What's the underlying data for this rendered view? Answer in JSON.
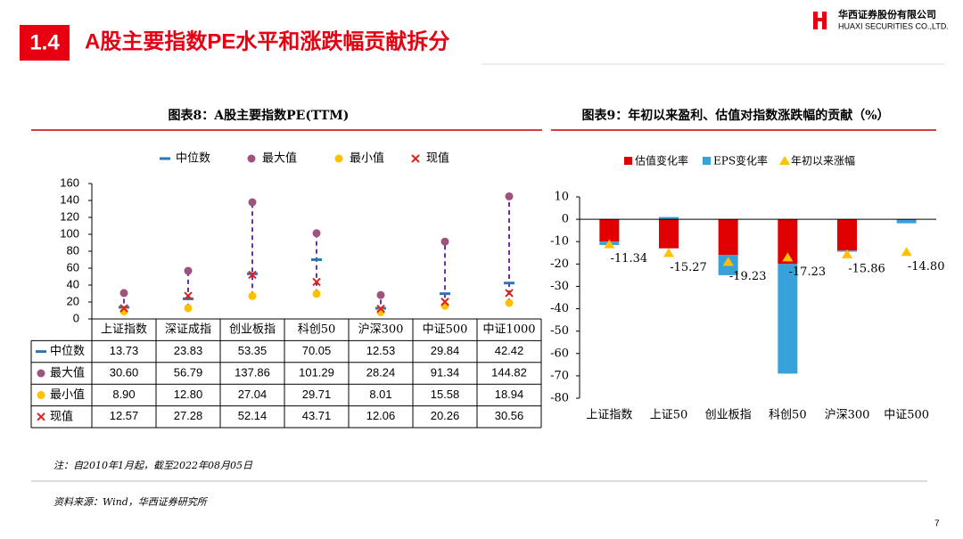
{
  "header": {
    "section": "1.4",
    "title": "A股主要指数PE水平和涨跌幅贡献拆分",
    "company": "华西证券股份有限公司",
    "company_en": "HUAXI SECURITIES CO.,LTD."
  },
  "chart_data": [
    {
      "type": "dot",
      "title": "图表8：A股主要指数PE(TTM)",
      "categories": [
        "上证指数",
        "深证成指",
        "创业板指",
        "科创50",
        "沪深300",
        "中证500",
        "中证1000"
      ],
      "series": [
        {
          "name": "中位数",
          "color": "#2e75b6",
          "marker": "dash",
          "values": [
            13.73,
            23.83,
            53.35,
            70.05,
            12.53,
            29.84,
            42.42
          ],
          "value_labels": [
            "13.73",
            "23.83",
            "53.35",
            "70.05",
            "12.53",
            "29.84",
            "42.42"
          ]
        },
        {
          "name": "最大值",
          "color": "#a0527f",
          "marker": "circle",
          "values": [
            30.6,
            56.79,
            137.86,
            101.29,
            28.24,
            91.34,
            144.82
          ],
          "value_labels": [
            "30.60",
            "56.79",
            "137.86",
            "101.29",
            "28.24",
            "91.34",
            "144.82"
          ]
        },
        {
          "name": "最小值",
          "color": "#ffc000",
          "marker": "circle",
          "values": [
            8.9,
            12.8,
            27.04,
            29.71,
            8.01,
            15.58,
            18.94
          ],
          "value_labels": [
            "8.90",
            "12.80",
            "27.04",
            "29.71",
            "8.01",
            "15.58",
            "18.94"
          ]
        },
        {
          "name": "现值",
          "color": "#e0201b",
          "marker": "x",
          "values": [
            12.57,
            27.28,
            52.14,
            43.71,
            12.06,
            20.26,
            30.56
          ],
          "value_labels": [
            "12.57",
            "27.28",
            "52.14",
            "43.71",
            "12.06",
            "20.26",
            "30.56"
          ]
        }
      ],
      "range_color": "#7030a0",
      "ylim": [
        0,
        160
      ],
      "yticks": [
        0,
        20,
        40,
        60,
        80,
        100,
        120,
        140,
        160
      ]
    },
    {
      "type": "bar",
      "title": "图表9：年初以来盈利、估值对指数涨跌幅的贡献（%）",
      "categories": [
        "上证指数",
        "上证50",
        "创业板指",
        "科创50",
        "沪深300",
        "中证500"
      ],
      "series": [
        {
          "name": "估值变化率",
          "color": "#e00000",
          "kind": "bar",
          "values": [
            -10,
            -13,
            -16,
            -20,
            -14,
            -0.3
          ]
        },
        {
          "name": "EPS变化率",
          "color": "#36a2d9",
          "kind": "bar",
          "values": [
            -1.5,
            1,
            -9,
            -49,
            -0.5,
            -1.5
          ]
        },
        {
          "name": "年初以来涨幅",
          "color": "#ffc000",
          "kind": "marker",
          "values": [
            -11.34,
            -15.27,
            -19.23,
            -17.23,
            -15.86,
            -14.8
          ],
          "value_labels": [
            "-11.34",
            "-15.27",
            "-19.23",
            "-17.23",
            "-15.86",
            "-14.80"
          ]
        }
      ],
      "ylim": [
        -80,
        10
      ],
      "yticks": [
        -80,
        -70,
        -60,
        -50,
        -40,
        -30,
        -20,
        -10,
        0,
        10
      ]
    }
  ],
  "notes": [
    "注：自2010年1月起，截至2022年08月05日",
    "资料来源：Wind，华西证券研究所"
  ],
  "page": "7"
}
